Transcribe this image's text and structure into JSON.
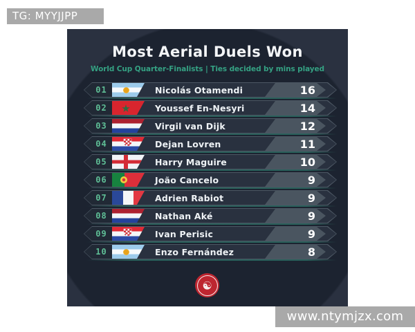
{
  "overlays": {
    "telegram_badge": "TG: MYYJJPP",
    "watermark": "www.ntymjzx.com"
  },
  "logo_glyph": "☯",
  "colors": {
    "page_background": "#ffffff",
    "badge_gray": "#a9a9a9",
    "card_background": "#1c2330",
    "card_corner": "#2a3140",
    "row_background": "#29313f",
    "row_outline": "#4d5864",
    "rank_text": "#5fbe96",
    "subtitle_teal": "#35a183",
    "value_badge": "#4a5560",
    "logo_red": "#bd2630"
  },
  "chart_data": {
    "type": "table",
    "title": "Most Aerial Duels Won",
    "subtitle": "World Cup Quarter-Finalists | Ties decided by mins played",
    "columns": [
      "rank",
      "country",
      "player",
      "aerial_duels_won"
    ],
    "rows": [
      {
        "rank": "01",
        "flag": "argentina",
        "country": "Argentina",
        "player": "Nicolás Otamendi",
        "value": 16
      },
      {
        "rank": "02",
        "flag": "morocco",
        "country": "Morocco",
        "player": "Youssef En-Nesyri",
        "value": 14
      },
      {
        "rank": "03",
        "flag": "netherlands",
        "country": "Netherlands",
        "player": "Virgil van Dijk",
        "value": 12
      },
      {
        "rank": "04",
        "flag": "croatia",
        "country": "Croatia",
        "player": "Dejan Lovren",
        "value": 11
      },
      {
        "rank": "05",
        "flag": "england",
        "country": "England",
        "player": "Harry Maguire",
        "value": 10
      },
      {
        "rank": "06",
        "flag": "portugal",
        "country": "Portugal",
        "player": "João Cancelo",
        "value": 9
      },
      {
        "rank": "07",
        "flag": "france",
        "country": "France",
        "player": "Adrien Rabiot",
        "value": 9
      },
      {
        "rank": "08",
        "flag": "netherlands",
        "country": "Netherlands",
        "player": "Nathan Aké",
        "value": 9
      },
      {
        "rank": "09",
        "flag": "croatia",
        "country": "Croatia",
        "player": "Ivan Perisic",
        "value": 9
      },
      {
        "rank": "10",
        "flag": "argentina",
        "country": "Argentina",
        "player": "Enzo Fernández",
        "value": 8
      }
    ]
  }
}
